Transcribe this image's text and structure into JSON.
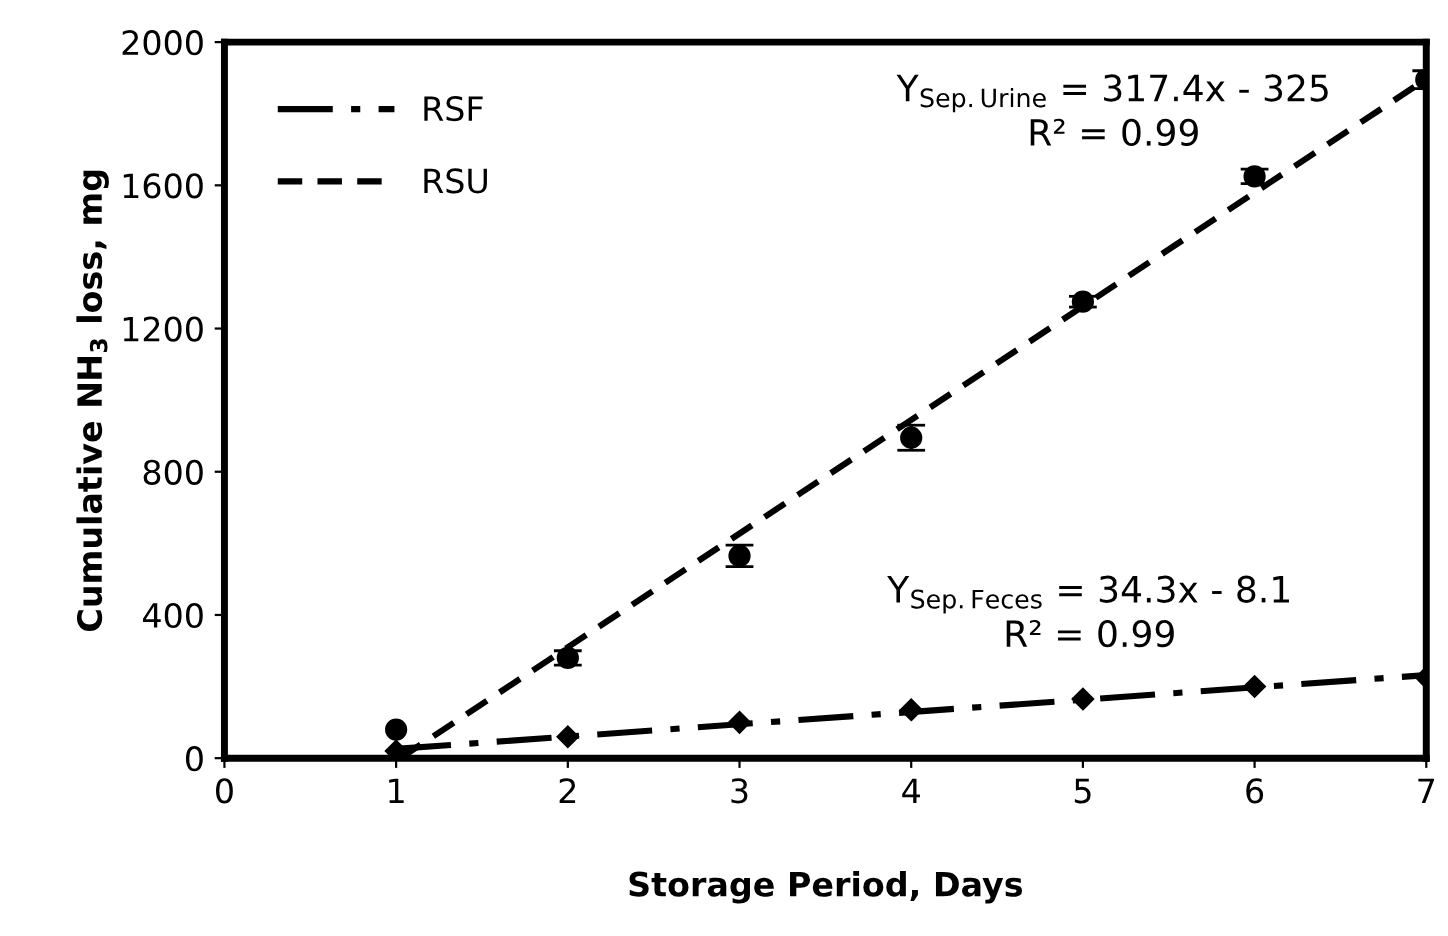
{
  "chart_data": {
    "type": "scatter",
    "xlabel": "Storage Period, Days",
    "ylabel": "Cumulative NH$_{3}$ loss, mg",
    "xlim": [
      0,
      7
    ],
    "xticks": [
      0,
      1,
      2,
      3,
      4,
      5,
      6,
      7
    ],
    "ylim": [
      0,
      2000
    ],
    "yticks": [
      0,
      400,
      800,
      1200,
      1600,
      2000
    ],
    "grid": false,
    "legend": "top left",
    "series": [
      {
        "color": "#000000",
        "marker": "circle",
        "x": [
          1,
          2,
          3,
          4,
          5,
          6,
          7
        ],
        "values": [
          80,
          280,
          565,
          895,
          1275,
          1625,
          1895
        ],
        "errors": [
          null,
          20,
          30,
          35,
          15,
          20,
          25
        ]
      },
      {
        "color": "#000000",
        "marker": "diamond",
        "x": [
          1,
          2,
          3,
          4,
          5,
          6,
          7
        ],
        "values": [
          20,
          60,
          100,
          135,
          165,
          200,
          225
        ]
      },
      {
        "type": "line",
        "name": "RSF",
        "color": "#000000",
        "line_style": "dashdot",
        "x": [
          1,
          7
        ],
        "values": [
          26,
          232
        ]
      },
      {
        "type": "line",
        "name": "RSU",
        "color": "#000000",
        "line_style": "dashed",
        "x": [
          1.024,
          7
        ],
        "values": [
          0,
          1897
        ]
      }
    ],
    "annotations": [
      "Y$_{Sep.Urine}$ = 317.4x - 325\nR² = 0.99",
      "Y$_{Sep.Feces}$ = 34.3x - 8.1\nR² = 0.99"
    ]
  }
}
